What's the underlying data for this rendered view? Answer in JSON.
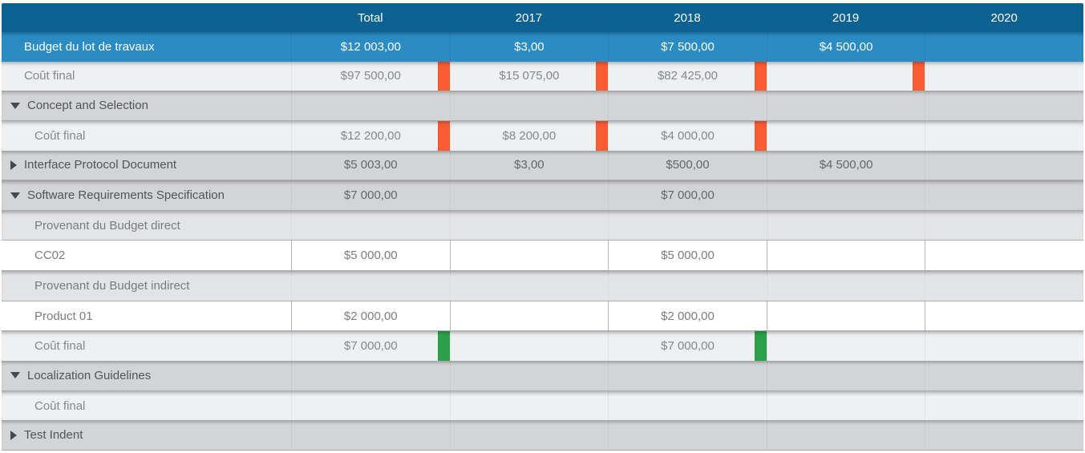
{
  "colors": {
    "header_bg": "#0b618f",
    "budget_row_bg": "#2b8cc4",
    "orange_marker": "#f95b33",
    "green_marker": "#2ca04a"
  },
  "table": {
    "columns": [
      "",
      "Total",
      "2017",
      "2018",
      "2019",
      "2020"
    ],
    "rows": [
      {
        "type": "budget",
        "indent": 1,
        "label": "Budget du lot de travaux",
        "values": [
          "$12 003,00",
          "$3,00",
          "$7 500,00",
          "$4 500,00",
          ""
        ]
      },
      {
        "type": "cost",
        "indent": 1,
        "label": "Coût final",
        "values": [
          "$97 500,00",
          "$15 075,00",
          "$82 425,00",
          "",
          ""
        ],
        "markers": [
          "orange_marker",
          "orange_marker",
          "orange_marker",
          "orange_marker",
          null
        ]
      },
      {
        "type": "group",
        "expanded": true,
        "label": "Concept and Selection",
        "values": [
          "",
          "",
          "",
          "",
          ""
        ]
      },
      {
        "type": "cost",
        "indent": 2,
        "label": "Coût final",
        "values": [
          "$12 200,00",
          "$8 200,00",
          "$4 000,00",
          "",
          ""
        ],
        "markers": [
          "orange_marker",
          "orange_marker",
          "orange_marker",
          null,
          null
        ]
      },
      {
        "type": "group",
        "expanded": false,
        "label": "Interface Protocol Document",
        "values": [
          "$5 003,00",
          "$3,00",
          "$500,00",
          "$4 500,00",
          ""
        ]
      },
      {
        "type": "group",
        "expanded": true,
        "label": "Software Requirements Specification",
        "values": [
          "$7 000,00",
          "",
          "$7 000,00",
          "",
          ""
        ]
      },
      {
        "type": "subheader",
        "indent": 2,
        "label": "Provenant du Budget direct",
        "values": [
          "",
          "",
          "",
          "",
          ""
        ]
      },
      {
        "type": "editable",
        "indent": 2,
        "label": "CC02",
        "values": [
          "$5 000,00",
          "",
          "$5 000,00",
          "",
          ""
        ]
      },
      {
        "type": "subheader",
        "indent": 2,
        "label": "Provenant du Budget indirect",
        "values": [
          "",
          "",
          "",
          "",
          ""
        ]
      },
      {
        "type": "editable",
        "indent": 2,
        "label": "Product 01",
        "values": [
          "$2 000,00",
          "",
          "$2 000,00",
          "",
          ""
        ]
      },
      {
        "type": "cost",
        "indent": 2,
        "label": "Coût final",
        "values": [
          "$7 000,00",
          "",
          "$7 000,00",
          "",
          ""
        ],
        "markers": [
          "green_marker",
          null,
          "green_marker",
          null,
          null
        ]
      },
      {
        "type": "group",
        "expanded": true,
        "label": "Localization Guidelines",
        "values": [
          "",
          "",
          "",
          "",
          ""
        ]
      },
      {
        "type": "cost",
        "indent": 2,
        "label": "Coût final",
        "values": [
          "",
          "",
          "",
          "",
          ""
        ]
      },
      {
        "type": "group",
        "expanded": false,
        "label": "Test Indent",
        "values": [
          "",
          "",
          "",
          "",
          ""
        ]
      }
    ]
  }
}
